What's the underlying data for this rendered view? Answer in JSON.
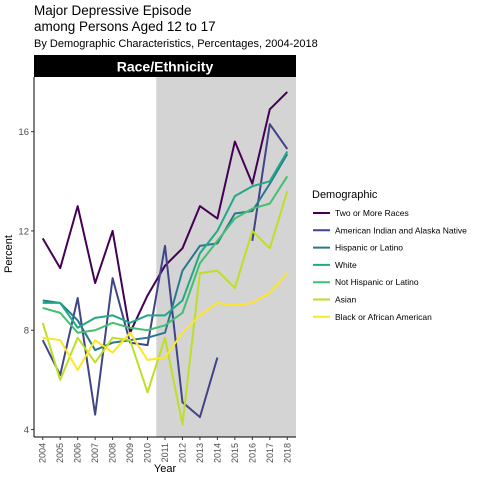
{
  "chart_data": {
    "type": "line",
    "title": "Major Depressive Episode",
    "title_line2": "among Persons Aged 12 to 17",
    "subtitle": "By Demographic Characteristics, Percentages, 2004-2018",
    "panel_label": "Race/Ethnicity",
    "xlabel": "Year",
    "ylabel": "Percent",
    "ylim": [
      3.7,
      18.2
    ],
    "yticks": [
      4,
      8,
      12,
      16
    ],
    "x": [
      "2004",
      "2005",
      "2006",
      "2007",
      "2008",
      "2009",
      "2010",
      "2011",
      "2012",
      "2013",
      "2014",
      "2015",
      "2016",
      "2017",
      "2018"
    ],
    "shaded_region": [
      "2011",
      "2018"
    ],
    "legend_title": "Demographic",
    "legend_position": "right",
    "colors": {
      "shaded": "#d4d4d4",
      "panel_header_bg": "#000000",
      "panel_header_text": "#ffffff"
    },
    "series": [
      {
        "name": "Two or More Races",
        "color": "#440154",
        "values": [
          11.7,
          10.5,
          13.0,
          9.9,
          12.0,
          7.9,
          9.4,
          10.6,
          11.3,
          13.0,
          12.5,
          15.6,
          13.9,
          16.9,
          17.6
        ]
      },
      {
        "name": "American Indian and Alaska Native",
        "color": "#414487",
        "values": [
          7.6,
          6.2,
          9.3,
          4.6,
          10.1,
          7.5,
          7.4,
          11.4,
          5.1,
          4.5,
          6.9,
          null,
          null,
          null,
          null
        ],
        "values_late": [
          null,
          null,
          null,
          null,
          null,
          null,
          null,
          null,
          null,
          null,
          null,
          null,
          11.6,
          16.3,
          15.3
        ]
      },
      {
        "name": "Hispanic or Latino",
        "color": "#2a788e",
        "values": [
          9.2,
          9.1,
          8.4,
          7.2,
          7.5,
          7.6,
          7.7,
          7.9,
          10.4,
          11.4,
          11.5,
          12.7,
          12.8,
          13.9,
          15.1
        ]
      },
      {
        "name": "White",
        "color": "#22a884",
        "values": [
          9.1,
          9.1,
          8.1,
          8.5,
          8.6,
          8.3,
          8.6,
          8.6,
          9.2,
          11.1,
          12.0,
          13.4,
          13.8,
          14.0,
          15.2
        ]
      },
      {
        "name": "Not Hispanic or Latino",
        "color": "#44bf70",
        "values": [
          8.9,
          8.7,
          7.9,
          8.0,
          8.3,
          8.1,
          8.0,
          8.2,
          8.7,
          10.7,
          11.6,
          12.5,
          12.9,
          13.1,
          14.2
        ]
      },
      {
        "name": "Asian",
        "color": "#bddf26",
        "values": [
          8.3,
          6.0,
          7.7,
          6.7,
          7.7,
          7.6,
          5.5,
          7.7,
          4.2,
          10.3,
          10.4,
          9.7,
          12.0,
          11.3,
          13.6
        ]
      },
      {
        "name": "Black or African American",
        "color": "#fde725",
        "values": [
          7.7,
          7.6,
          6.4,
          7.6,
          7.1,
          7.9,
          6.8,
          6.9,
          7.9,
          8.6,
          9.1,
          9.0,
          9.1,
          9.5,
          10.3
        ]
      }
    ]
  }
}
